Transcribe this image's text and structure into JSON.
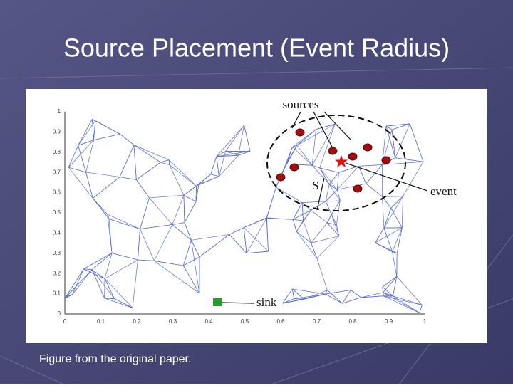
{
  "slide": {
    "title": "Source Placement (Event Radius)",
    "figure": {
      "yticks": [
        "0",
        "0.1",
        "0.2",
        "0.3",
        "0.4",
        "0.5",
        "0.6",
        "0.7",
        "0.8",
        "0.9",
        "1"
      ],
      "xticks": [
        "0",
        "0.1",
        "0.2",
        "0.3",
        "0.4",
        "0.5",
        "0.6",
        "0.7",
        "0.8",
        "0.9",
        "1"
      ],
      "labels": {
        "sources": "sources",
        "event": "event",
        "radius": "S",
        "sink": "sink"
      }
    },
    "caption": "Figure from the original paper."
  }
}
